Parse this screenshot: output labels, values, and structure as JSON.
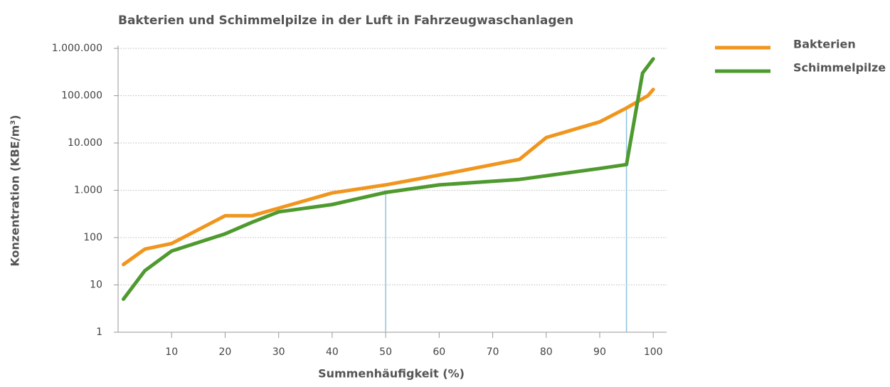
{
  "chart_data": {
    "type": "line",
    "title": "Bakterien und Schimmelpilze in der Luft in Fahrzeugwaschanlagen",
    "xlabel": "Summenhäufigkeit (%)",
    "ylabel": "Konzentration (KBE/m³)",
    "xlim": [
      0,
      102.5
    ],
    "xticks": [
      10,
      20,
      30,
      40,
      50,
      60,
      70,
      80,
      90,
      100
    ],
    "ylim": [
      1,
      1000000
    ],
    "yscale": "log",
    "yticks": [
      1,
      10,
      100,
      {
        "value": 1000,
        "label": "1.000"
      },
      {
        "value": 10000,
        "label": "10.000"
      },
      {
        "value": 100000,
        "label": "100.000"
      },
      {
        "value": 1000000,
        "label": "1.000.000"
      }
    ],
    "grid": true,
    "legend": "top-right",
    "series": [
      {
        "name": "Bakterien",
        "color": "#f0961e",
        "x": [
          1,
          5,
          10,
          20,
          25,
          30,
          40,
          50,
          60,
          75,
          80,
          90,
          95,
          99,
          100
        ],
        "values": [
          27,
          57,
          75,
          290,
          290,
          420,
          880,
          1300,
          2100,
          4500,
          13000,
          28000,
          55000,
          100000,
          135000
        ]
      },
      {
        "name": "Schimmelpilze",
        "color": "#4e9a2f",
        "x": [
          1,
          5,
          10,
          20,
          25,
          30,
          40,
          50,
          60,
          75,
          90,
          95,
          98,
          100
        ],
        "values": [
          5,
          20,
          52,
          120,
          210,
          350,
          500,
          900,
          1300,
          1700,
          2900,
          3500,
          300000,
          600000
        ]
      }
    ],
    "reference_lines": {
      "color": "#8cc4dc",
      "x": [
        50,
        95
      ],
      "values": [
        900,
        55000
      ]
    }
  }
}
